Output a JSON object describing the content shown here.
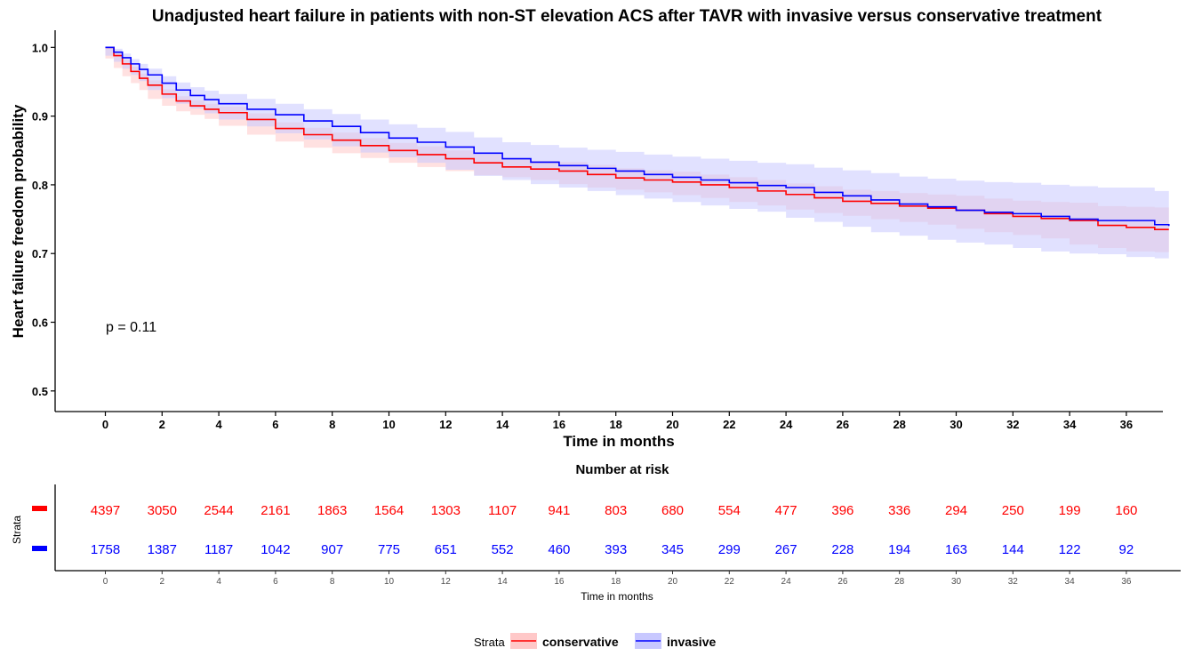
{
  "chart_data": {
    "type": "line",
    "title": "Unadjusted heart failure in patients with non-ST elevation ACS after TAVR with invasive versus conservative treatment",
    "xlabel": "Time in months",
    "ylabel": "Heart failure freedom probability",
    "xlim": [
      -1.3,
      37.5
    ],
    "ylim": [
      0.47,
      1.025
    ],
    "xticks": [
      0,
      2,
      4,
      6,
      8,
      10,
      12,
      14,
      16,
      18,
      20,
      22,
      24,
      26,
      28,
      30,
      32,
      34,
      36
    ],
    "yticks": [
      0.5,
      0.6,
      0.7,
      0.8,
      0.9,
      1.0
    ],
    "ytick_labels": [
      "0.5",
      "0.6",
      "0.7",
      "0.8",
      "0.9",
      "1.0"
    ],
    "annotation": "p = 0.11",
    "legend_title": "Strata",
    "legend_position": "bottom",
    "grid": false,
    "series": [
      {
        "name": "conservative",
        "color": "#ff0000",
        "band_color": "#ffc8c8",
        "x": [
          0,
          0.3,
          0.6,
          0.9,
          1.2,
          1.5,
          2,
          2.5,
          3,
          3.5,
          4,
          5,
          6,
          7,
          8,
          9,
          10,
          11,
          12,
          13,
          14,
          15,
          16,
          17,
          18,
          19,
          20,
          21,
          22,
          23,
          24,
          25,
          26,
          27,
          28,
          29,
          30,
          31,
          32,
          33,
          34,
          35,
          36,
          37,
          37.5
        ],
        "y": [
          1.0,
          0.988,
          0.976,
          0.965,
          0.955,
          0.945,
          0.932,
          0.922,
          0.915,
          0.91,
          0.905,
          0.895,
          0.882,
          0.873,
          0.865,
          0.857,
          0.85,
          0.844,
          0.838,
          0.832,
          0.826,
          0.823,
          0.82,
          0.815,
          0.81,
          0.807,
          0.804,
          0.8,
          0.796,
          0.791,
          0.786,
          0.781,
          0.776,
          0.773,
          0.769,
          0.766,
          0.763,
          0.758,
          0.754,
          0.751,
          0.748,
          0.741,
          0.738,
          0.735,
          0.735
        ],
        "lower": [
          1.0,
          0.984,
          0.97,
          0.958,
          0.948,
          0.938,
          0.925,
          0.915,
          0.907,
          0.902,
          0.896,
          0.886,
          0.873,
          0.863,
          0.854,
          0.846,
          0.839,
          0.832,
          0.826,
          0.82,
          0.814,
          0.811,
          0.807,
          0.801,
          0.796,
          0.793,
          0.789,
          0.785,
          0.781,
          0.775,
          0.77,
          0.764,
          0.759,
          0.755,
          0.75,
          0.746,
          0.742,
          0.736,
          0.731,
          0.727,
          0.722,
          0.713,
          0.708,
          0.703,
          0.702
        ],
        "upper": [
          1.0,
          0.992,
          0.982,
          0.972,
          0.962,
          0.952,
          0.939,
          0.929,
          0.923,
          0.918,
          0.914,
          0.904,
          0.891,
          0.883,
          0.876,
          0.868,
          0.861,
          0.856,
          0.85,
          0.844,
          0.838,
          0.835,
          0.833,
          0.829,
          0.824,
          0.821,
          0.819,
          0.815,
          0.811,
          0.807,
          0.802,
          0.798,
          0.793,
          0.791,
          0.788,
          0.786,
          0.784,
          0.78,
          0.777,
          0.775,
          0.774,
          0.769,
          0.768,
          0.767,
          0.768
        ]
      },
      {
        "name": "invasive",
        "color": "#0000ff",
        "band_color": "#c8c8ff",
        "x": [
          0,
          0.3,
          0.6,
          0.9,
          1.2,
          1.5,
          2,
          2.5,
          3,
          3.5,
          4,
          5,
          6,
          7,
          8,
          9,
          10,
          11,
          12,
          13,
          14,
          15,
          16,
          17,
          18,
          19,
          20,
          21,
          22,
          23,
          24,
          25,
          26,
          27,
          28,
          29,
          30,
          31,
          32,
          33,
          34,
          35,
          36,
          37,
          37.5
        ],
        "y": [
          1.0,
          0.993,
          0.985,
          0.976,
          0.968,
          0.96,
          0.948,
          0.938,
          0.93,
          0.924,
          0.918,
          0.91,
          0.902,
          0.893,
          0.885,
          0.876,
          0.868,
          0.862,
          0.855,
          0.846,
          0.838,
          0.833,
          0.828,
          0.824,
          0.82,
          0.815,
          0.811,
          0.807,
          0.803,
          0.799,
          0.796,
          0.789,
          0.784,
          0.778,
          0.772,
          0.768,
          0.763,
          0.76,
          0.758,
          0.754,
          0.75,
          0.748,
          0.748,
          0.742,
          0.74
        ],
        "lower": [
          1.0,
          0.988,
          0.979,
          0.969,
          0.96,
          0.951,
          0.938,
          0.926,
          0.918,
          0.911,
          0.904,
          0.895,
          0.885,
          0.875,
          0.866,
          0.856,
          0.847,
          0.84,
          0.832,
          0.822,
          0.813,
          0.807,
          0.801,
          0.796,
          0.791,
          0.785,
          0.78,
          0.775,
          0.77,
          0.765,
          0.761,
          0.752,
          0.746,
          0.739,
          0.731,
          0.726,
          0.72,
          0.716,
          0.713,
          0.708,
          0.703,
          0.7,
          0.699,
          0.695,
          0.693
        ],
        "upper": [
          1.0,
          0.998,
          0.991,
          0.983,
          0.976,
          0.969,
          0.958,
          0.949,
          0.942,
          0.937,
          0.932,
          0.925,
          0.918,
          0.91,
          0.903,
          0.895,
          0.888,
          0.883,
          0.877,
          0.869,
          0.862,
          0.858,
          0.854,
          0.851,
          0.848,
          0.844,
          0.841,
          0.838,
          0.835,
          0.832,
          0.83,
          0.825,
          0.821,
          0.817,
          0.812,
          0.809,
          0.806,
          0.804,
          0.803,
          0.8,
          0.798,
          0.796,
          0.796,
          0.791,
          0.789
        ]
      }
    ],
    "risk_table": {
      "title": "Number at risk",
      "ylabel": "Strata",
      "xlabel": "Time in months",
      "times": [
        0,
        2,
        4,
        6,
        8,
        10,
        12,
        14,
        16,
        18,
        20,
        22,
        24,
        26,
        28,
        30,
        32,
        34,
        36
      ],
      "rows": [
        {
          "name": "conservative",
          "color": "#ff0000",
          "values": [
            "4397",
            "3050",
            "2544",
            "2161",
            "1863",
            "1564",
            "1303",
            "1107",
            "941",
            "803",
            "680",
            "554",
            "477",
            "396",
            "336",
            "294",
            "250",
            "199",
            "160"
          ]
        },
        {
          "name": "invasive",
          "color": "#0000ff",
          "values": [
            "1758",
            "1387",
            "1187",
            "1042",
            "907",
            "775",
            "651",
            "552",
            "460",
            "393",
            "345",
            "299",
            "267",
            "228",
            "194",
            "163",
            "144",
            "122",
            "92"
          ]
        }
      ]
    }
  }
}
